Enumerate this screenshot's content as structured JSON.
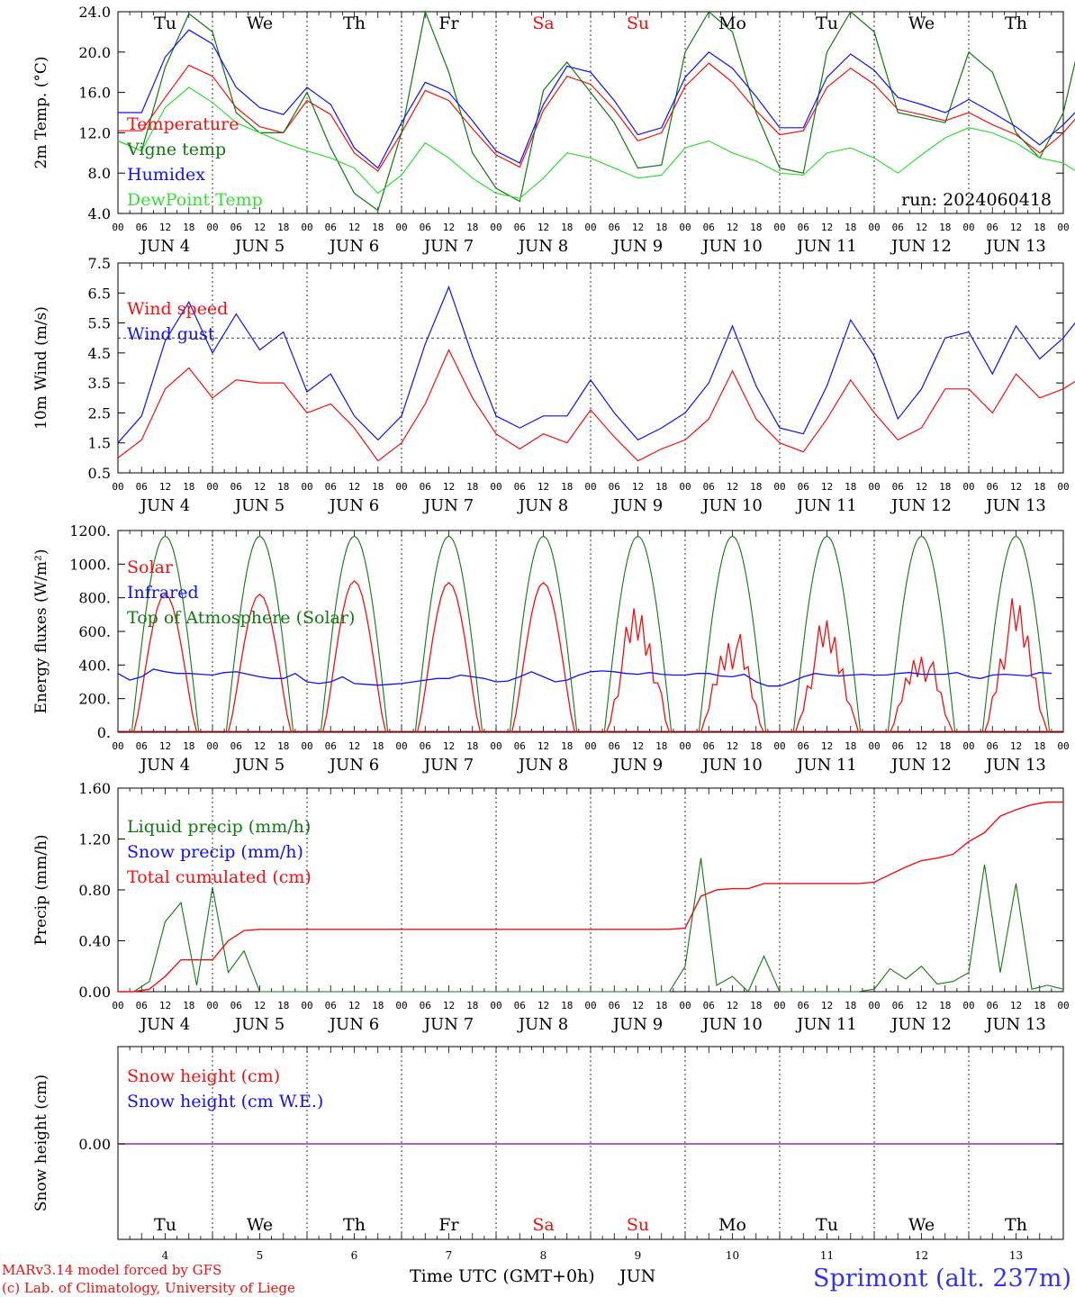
{
  "colors": {
    "red": "#ee1111",
    "blue": "#1111ee",
    "green": "#117711",
    "lightgreen": "#33dd33",
    "purple": "#8833aa",
    "axis": "#000000",
    "site": "#3333ee"
  },
  "header": {
    "day_labels": [
      "Tu",
      "We",
      "Th",
      "Fr",
      "Sa",
      "Su",
      "Mo",
      "Tu",
      "We",
      "Th"
    ],
    "day_colors": [
      "black",
      "black",
      "black",
      "black",
      "red",
      "red",
      "black",
      "black",
      "black",
      "black"
    ],
    "date_labels": [
      "JUN  4",
      "JUN  5",
      "JUN  6",
      "JUN  7",
      "JUN  8",
      "JUN  9",
      "JUN 10",
      "JUN 11",
      "JUN 12",
      "JUN 13"
    ],
    "hour_ticks": [
      "00",
      "06",
      "12",
      "18"
    ],
    "date_numbers": [
      "4",
      "5",
      "6",
      "7",
      "8",
      "9",
      "10",
      "11",
      "12",
      "13"
    ]
  },
  "footer": {
    "model": "MARv3.14 model forced by GFS",
    "credit": "(c) Lab. of Climatology, University of Liege",
    "xlabel": "Time UTC (GMT+0h)",
    "month": "JUN",
    "site": "Sprimont (alt. 237m)"
  },
  "chart_data": [
    {
      "type": "line",
      "ylabel": "2m Temp. (°C)",
      "ylim": [
        4.0,
        24.0
      ],
      "yticks": [
        "4.0",
        "8.0",
        "12.0",
        "16.0",
        "20.0",
        "24.0"
      ],
      "run_label": "run: 2024060418",
      "x_step_hours": 6,
      "x_start": "2024-06-04 00:00",
      "series": [
        {
          "name": "Temperature",
          "color": "red",
          "values": [
            12.2,
            12.2,
            15.5,
            18.7,
            17.6,
            14.5,
            12.6,
            12.0,
            15.2,
            13.8,
            10.0,
            8.2,
            12.0,
            16.2,
            15.2,
            12.4,
            9.8,
            8.6,
            14.2,
            17.6,
            16.8,
            14.3,
            11.2,
            12.0,
            16.6,
            18.9,
            17.0,
            14.2,
            11.8,
            12.2,
            16.5,
            18.4,
            16.8,
            14.3,
            13.8,
            13.2,
            14.0,
            12.8,
            11.8,
            10.0,
            12.0,
            14.7,
            12.0,
            9.8,
            10.3,
            13.5,
            15.2,
            13.5,
            11.0,
            11.0,
            12.0,
            15.3,
            13.0,
            11.6
          ]
        },
        {
          "name": "Vigne temp",
          "color": "green",
          "values": [
            11.2,
            10.2,
            18.5,
            23.8,
            22.0,
            14.0,
            12.0,
            12.0,
            16.0,
            10.5,
            6.0,
            4.3,
            12.0,
            24.0,
            18.0,
            10.0,
            6.5,
            5.2,
            16.2,
            19.0,
            16.0,
            13.0,
            8.5,
            8.8,
            20.0,
            24.0,
            22.0,
            14.0,
            8.5,
            8.0,
            20.0,
            24.0,
            22.0,
            14.0,
            13.5,
            13.0,
            20.0,
            18.0,
            12.0,
            9.5,
            14.0,
            24.0,
            20.0,
            10.0,
            7.0,
            14.0,
            24.0,
            24.0,
            12.0,
            10.2,
            12.0,
            22.0,
            20.0,
            11.0
          ]
        },
        {
          "name": "Humidex",
          "color": "blue",
          "values": [
            14.0,
            14.0,
            19.5,
            22.2,
            20.8,
            16.5,
            14.5,
            13.8,
            16.5,
            14.8,
            10.5,
            8.5,
            13.0,
            17.0,
            16.0,
            13.2,
            10.2,
            9.0,
            14.8,
            18.6,
            18.0,
            15.2,
            11.8,
            12.5,
            17.5,
            20.0,
            18.4,
            15.6,
            12.5,
            12.5,
            17.5,
            19.8,
            18.2,
            15.5,
            14.8,
            14.0,
            15.3,
            14.0,
            12.6,
            10.8,
            12.8,
            15.2,
            12.8,
            10.5,
            10.8,
            14.2,
            15.6,
            14.2,
            12.8,
            12.6,
            13.0,
            16.5,
            15.8,
            14.0
          ]
        },
        {
          "name": "DewPoint Temp",
          "color": "lightgreen",
          "values": [
            11.2,
            10.2,
            14.5,
            16.5,
            15.0,
            13.0,
            12.0,
            11.0,
            10.2,
            9.5,
            8.5,
            6.0,
            7.8,
            11.0,
            9.5,
            7.5,
            6.0,
            5.5,
            7.5,
            10.0,
            9.5,
            8.5,
            7.5,
            7.8,
            10.5,
            11.2,
            10.0,
            9.2,
            8.0,
            7.8,
            10.0,
            10.5,
            9.5,
            8.0,
            9.8,
            11.5,
            12.5,
            12.0,
            11.0,
            9.5,
            9.0,
            7.5,
            6.0,
            5.0,
            5.5,
            7.5,
            9.5,
            9.0,
            10.0,
            10.5,
            11.0,
            11.2,
            10.8,
            10.5
          ]
        }
      ]
    },
    {
      "type": "line",
      "ylabel": "10m Wind (m/s)",
      "ylim": [
        0.5,
        7.5
      ],
      "yticks": [
        "0.5",
        "1.5",
        "2.5",
        "3.5",
        "4.5",
        "5.5",
        "6.5",
        "7.5"
      ],
      "reference_line": 5.0,
      "x_step_hours": 6,
      "series": [
        {
          "name": "Wind speed",
          "color": "red",
          "values": [
            1.0,
            1.6,
            3.3,
            4.0,
            3.0,
            3.6,
            3.5,
            3.5,
            2.5,
            2.8,
            2.0,
            0.9,
            1.5,
            2.8,
            4.6,
            3.0,
            1.8,
            1.3,
            1.8,
            1.5,
            2.6,
            1.7,
            0.9,
            1.3,
            1.6,
            2.3,
            3.9,
            2.3,
            1.5,
            1.2,
            2.3,
            3.6,
            2.5,
            1.6,
            2.0,
            3.3,
            3.3,
            2.5,
            3.8,
            3.0,
            3.3,
            3.8,
            3.0,
            1.5,
            1.3,
            2.0,
            4.0,
            3.6,
            1.5,
            1.4,
            1.8,
            2.8,
            3.3,
            1.0
          ]
        },
        {
          "name": "Wind gust",
          "color": "blue",
          "values": [
            1.5,
            2.4,
            4.9,
            6.2,
            4.5,
            5.8,
            4.6,
            5.2,
            3.2,
            3.8,
            2.4,
            1.6,
            2.4,
            4.8,
            6.7,
            4.4,
            2.4,
            2.0,
            2.4,
            2.4,
            3.6,
            2.5,
            1.6,
            2.0,
            2.5,
            3.5,
            5.4,
            3.4,
            2.0,
            1.8,
            3.4,
            5.6,
            4.4,
            2.3,
            3.3,
            5.0,
            5.2,
            3.8,
            5.4,
            4.3,
            5.0,
            6.0,
            4.5,
            1.9,
            2.0,
            2.9,
            6.4,
            5.2,
            2.2,
            2.1,
            2.6,
            4.0,
            4.8,
            1.8
          ]
        }
      ]
    },
    {
      "type": "line",
      "ylabel": "Energy fluxes (W/m²)",
      "ylim": [
        0,
        1200
      ],
      "yticks": [
        "0.",
        "200.",
        "400.",
        "600.",
        "800.",
        "1000.",
        "1200."
      ],
      "x_step_hours": 3,
      "series": [
        {
          "name": "Solar",
          "color": "red",
          "peaks": [
            820,
            820,
            900,
            890,
            890,
            840,
            680,
            740,
            560,
            860
          ]
        },
        {
          "name": "Infrared",
          "color": "blue",
          "values": [
            350,
            310,
            330,
            375,
            360,
            350,
            350,
            345,
            340,
            355,
            360,
            345,
            330,
            320,
            320,
            350,
            300,
            290,
            300,
            330,
            290,
            285,
            280,
            285,
            290,
            300,
            310,
            320,
            320,
            340,
            330,
            320,
            300,
            305,
            330,
            360,
            330,
            300,
            310,
            340,
            360,
            365,
            360,
            350,
            345,
            355,
            345,
            340,
            340,
            350,
            350,
            335,
            330,
            345,
            300,
            275,
            275,
            300,
            330,
            350,
            340,
            335,
            340,
            345,
            340,
            340,
            350,
            355,
            345,
            345,
            345,
            355,
            330,
            320,
            340,
            345,
            340,
            335,
            355,
            350
          ]
        },
        {
          "name": "Top of Atmosphere (Solar)",
          "color": "green",
          "peak": 1165
        }
      ]
    },
    {
      "type": "line",
      "ylabel": "Precip (mm/h)",
      "ylim": [
        0.0,
        1.6
      ],
      "yticks": [
        "0.00",
        "0.40",
        "0.80",
        "1.20",
        "1.60"
      ],
      "x_step_hours": 6,
      "series": [
        {
          "name": "Liquid precip (mm/h)",
          "color": "green",
          "values": [
            0,
            0,
            0.08,
            0.55,
            0.7,
            0.05,
            0.82,
            0.15,
            0.32,
            0,
            0,
            0,
            0,
            0,
            0,
            0,
            0,
            0,
            0,
            0,
            0,
            0,
            0,
            0,
            0,
            0,
            0,
            0,
            0,
            0,
            0,
            0,
            0,
            0,
            0,
            0,
            0.2,
            1.05,
            0.05,
            0.12,
            0,
            0.28,
            0,
            0,
            0,
            0,
            0,
            0,
            0.02,
            0.18,
            0.1,
            0.2,
            0.06,
            0.08,
            0.15,
            1.0,
            0.15,
            0.85,
            0.02,
            0.05,
            0.02
          ]
        },
        {
          "name": "Snow precip (mm/h)",
          "color": "blue",
          "values": []
        },
        {
          "name": "Total cumulated (cm)",
          "color": "red",
          "values": [
            0,
            0,
            0.02,
            0.12,
            0.25,
            0.25,
            0.25,
            0.4,
            0.48,
            0.49,
            0.49,
            0.49,
            0.49,
            0.49,
            0.49,
            0.49,
            0.49,
            0.49,
            0.49,
            0.49,
            0.49,
            0.49,
            0.49,
            0.49,
            0.49,
            0.49,
            0.49,
            0.49,
            0.49,
            0.49,
            0.49,
            0.49,
            0.49,
            0.49,
            0.49,
            0.49,
            0.5,
            0.75,
            0.8,
            0.81,
            0.81,
            0.85,
            0.85,
            0.85,
            0.85,
            0.85,
            0.85,
            0.85,
            0.86,
            0.92,
            0.98,
            1.03,
            1.05,
            1.08,
            1.18,
            1.25,
            1.38,
            1.43,
            1.47,
            1.49,
            1.49
          ]
        }
      ]
    },
    {
      "type": "line",
      "ylabel": "Snow height (cm)",
      "yticks": [
        "0.00"
      ],
      "series": [
        {
          "name": "Snow height (cm)",
          "color": "red",
          "values": [
            0
          ]
        },
        {
          "name": "Snow height (cm W.E.)",
          "color": "blue",
          "values": [
            0
          ]
        }
      ]
    }
  ]
}
